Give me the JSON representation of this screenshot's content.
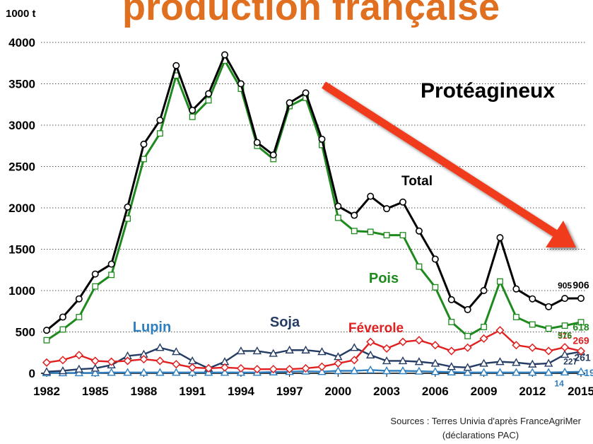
{
  "chart_data": {
    "type": "line",
    "title": "production française",
    "y_label": "1000 t",
    "annotation": "Protéagineux",
    "sources": [
      "Sources : Terres Univia d'après FranceAgriMer",
      "(déclarations PAC)"
    ],
    "x": [
      1982,
      1983,
      1984,
      1985,
      1986,
      1987,
      1988,
      1989,
      1990,
      1991,
      1992,
      1993,
      1994,
      1995,
      1996,
      1997,
      1998,
      1999,
      2000,
      2001,
      2002,
      2003,
      2004,
      2005,
      2006,
      2007,
      2008,
      2009,
      2010,
      2011,
      2012,
      2013,
      2014,
      2015
    ],
    "xlim": [
      1982,
      2015
    ],
    "xticks": [
      1982,
      1985,
      1988,
      1991,
      1994,
      1997,
      2000,
      2003,
      2006,
      2009,
      2012,
      2015
    ],
    "ylim": [
      0,
      4000
    ],
    "yticks": [
      0,
      500,
      1000,
      1500,
      2000,
      2500,
      3000,
      3500,
      4000
    ],
    "grid": true,
    "series": [
      {
        "name": "Total",
        "color": "#000000",
        "marker": "circle",
        "values": [
          520,
          680,
          900,
          1200,
          1320,
          2010,
          2770,
          3060,
          3720,
          3180,
          3380,
          3850,
          3500,
          2790,
          2640,
          3270,
          3390,
          2830,
          2020,
          1910,
          2140,
          1990,
          2070,
          1720,
          1380,
          890,
          770,
          1000,
          1640,
          1020,
          900,
          805,
          905,
          906
        ]
      },
      {
        "name": "Pois",
        "color": "#1e8a1e",
        "marker": "square",
        "values": [
          400,
          530,
          680,
          1050,
          1190,
          1870,
          2590,
          2900,
          3600,
          3100,
          3300,
          3780,
          3440,
          2750,
          2590,
          3230,
          3330,
          2760,
          1880,
          1720,
          1710,
          1670,
          1670,
          1290,
          1040,
          620,
          450,
          560,
          1110,
          680,
          590,
          540,
          576,
          618
        ]
      },
      {
        "name": "Féverole",
        "color": "#e02020",
        "marker": "diamond",
        "values": [
          130,
          160,
          220,
          150,
          140,
          150,
          170,
          150,
          110,
          70,
          60,
          70,
          60,
          50,
          50,
          50,
          60,
          80,
          120,
          160,
          380,
          300,
          380,
          400,
          340,
          270,
          310,
          420,
          520,
          340,
          310,
          270,
          315,
          269
        ]
      },
      {
        "name": "Soja",
        "color": "#243c64",
        "marker": "triangle",
        "values": [
          20,
          30,
          50,
          60,
          100,
          210,
          230,
          310,
          260,
          150,
          60,
          140,
          270,
          270,
          240,
          280,
          280,
          260,
          200,
          310,
          220,
          150,
          150,
          140,
          120,
          80,
          70,
          120,
          140,
          130,
          110,
          120,
          227,
          261
        ]
      },
      {
        "name": "Lupin",
        "color": "#2e7fc0",
        "marker": "triangle",
        "values": [
          5,
          5,
          5,
          5,
          10,
          10,
          10,
          10,
          10,
          10,
          10,
          10,
          10,
          10,
          15,
          20,
          25,
          20,
          30,
          30,
          40,
          30,
          30,
          25,
          20,
          15,
          10,
          10,
          10,
          10,
          10,
          10,
          14,
          19
        ]
      }
    ]
  }
}
